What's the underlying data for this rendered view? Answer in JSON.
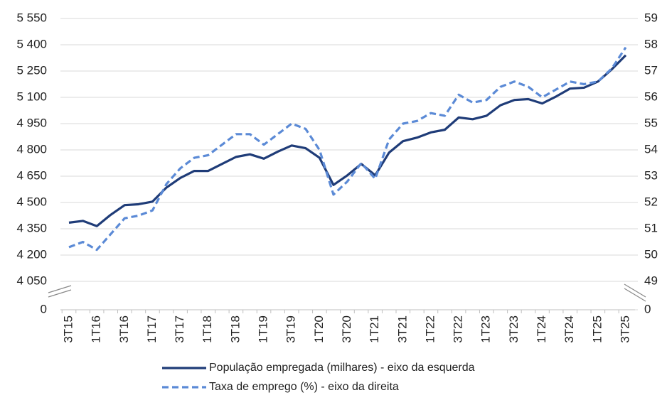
{
  "chart_data": {
    "type": "line",
    "categories": [
      "3T15",
      null,
      "1T16",
      null,
      "3T16",
      null,
      "1T17",
      null,
      "3T17",
      null,
      "1T18",
      null,
      "3T18",
      null,
      "1T19",
      null,
      "3T19",
      null,
      "1T20",
      null,
      "3T20",
      null,
      "1T21",
      null,
      "3T21",
      null,
      "1T22",
      null,
      "3T22",
      null,
      "1T23",
      null,
      "3T23",
      null,
      "1T24",
      null,
      "3T24",
      null,
      "1T25",
      null,
      "3T25"
    ],
    "series": [
      {
        "name": "População empregada (milhares) - eixo da esquerda",
        "color": "#1f3c78",
        "dash": false,
        "values": [
          4385,
          4395,
          4365,
          4430,
          4485,
          4490,
          4505,
          4585,
          4640,
          4680,
          4680,
          4720,
          4760,
          4775,
          4750,
          4790,
          4825,
          4810,
          4755,
          4600,
          4655,
          4720,
          4655,
          4785,
          4850,
          4870,
          4900,
          4915,
          4985,
          4975,
          4995,
          5055,
          5085,
          5090,
          5065,
          5105,
          5150,
          5155,
          5190,
          5260,
          5340
        ]
      },
      {
        "name": "Taxa de emprego (%) - eixo da direita",
        "color": "#5b8ad6",
        "dash": true,
        "axis": "y2",
        "values": [
          50.3,
          50.5,
          50.2,
          50.8,
          51.4,
          51.5,
          51.7,
          52.7,
          53.3,
          53.7,
          53.8,
          54.2,
          54.6,
          54.6,
          54.2,
          54.6,
          55.0,
          54.8,
          54.0,
          52.3,
          52.8,
          53.5,
          52.9,
          54.4,
          55.0,
          55.1,
          55.4,
          55.3,
          56.1,
          55.8,
          55.9,
          56.4,
          56.6,
          56.4,
          56.0,
          56.3,
          56.6,
          56.5,
          56.6,
          57.1,
          57.9
        ]
      }
    ],
    "ylim": [
      4050,
      5550
    ],
    "yticks": [
      0,
      {
        "value": 4050,
        "label": "4 050"
      },
      {
        "value": 4200,
        "label": "4 200"
      },
      {
        "value": 4350,
        "label": "4 350"
      },
      {
        "value": 4500,
        "label": "4 500"
      },
      {
        "value": 4650,
        "label": "4 650"
      },
      {
        "value": 4800,
        "label": "4 800"
      },
      {
        "value": 4950,
        "label": "4 950"
      },
      {
        "value": 5100,
        "label": "5 100"
      },
      {
        "value": 5250,
        "label": "5 250"
      },
      {
        "value": 5400,
        "label": "5 400"
      },
      {
        "value": 5550,
        "label": "5 550"
      }
    ],
    "y2lim": [
      49,
      59
    ],
    "y2ticks": [
      0,
      49,
      50,
      51,
      52,
      53,
      54,
      55,
      56,
      57,
      58,
      59
    ],
    "axis_break": true,
    "grid": true
  }
}
